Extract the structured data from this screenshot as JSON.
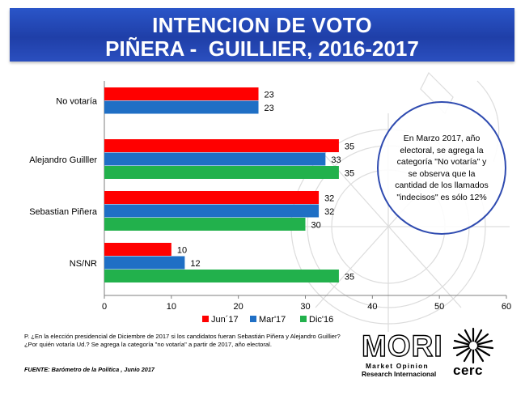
{
  "header": {
    "line1": "INTENCION DE VOTO",
    "line2": "PIÑERA -  GUILLIER, 2016-2017"
  },
  "chart_data": {
    "type": "bar",
    "orientation": "horizontal",
    "categories": [
      "No votaría",
      "Alejandro Guilller",
      "Sebastian Piñera",
      "NS/NR"
    ],
    "series": [
      {
        "name": "Jun´17",
        "color": "#ff0000",
        "values": [
          23,
          35,
          32,
          10
        ]
      },
      {
        "name": "Mar'17",
        "color": "#1f6fc5",
        "values": [
          23,
          33,
          32,
          12
        ]
      },
      {
        "name": "Dic'16",
        "color": "#22b14c",
        "values": [
          null,
          35,
          30,
          35
        ]
      }
    ],
    "xlim": [
      0,
      60
    ],
    "xticks": [
      0,
      10,
      20,
      30,
      40,
      50,
      60
    ],
    "legend_position": "bottom",
    "grid": false
  },
  "callout": {
    "text": "En Marzo 2017, año electoral, se agrega la categoría \"No votaría\" y se observa que la cantidad de los llamados \"indecisos\" es sólo 12%"
  },
  "footnote": "P. ¿En la elección presidencial de Diciembre de 2017 si los candidatos fueran Sebastián Piñera y Alejandro Guillier? ¿Por quién votaría Ud.? Se agrega la categoría \"no votaría\" a partir de 2017, año electoral.",
  "source": "FUENTE: Barómetro de la Política , Junio 2017",
  "logos": {
    "mori": "MORI",
    "mori_sub1": "Market Opinion",
    "mori_sub2": "Research Internacional",
    "cerc": "cerc"
  }
}
